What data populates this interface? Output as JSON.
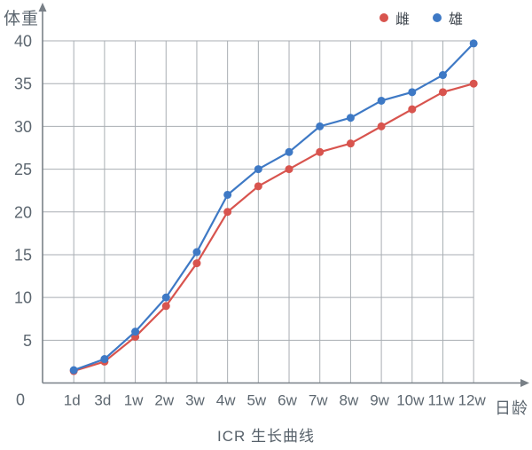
{
  "chart_data": {
    "type": "line",
    "title": "ICR 生长曲线",
    "y_axis_title": "体重",
    "x_axis_title": "日龄",
    "categories": [
      "1d",
      "3d",
      "1w",
      "2w",
      "3w",
      "4w",
      "5w",
      "6w",
      "7w",
      "8w",
      "9w",
      "10w",
      "11w",
      "12w"
    ],
    "y_ticks": [
      0,
      5,
      10,
      15,
      20,
      25,
      30,
      35,
      40
    ],
    "ylim": [
      0,
      40
    ],
    "grid": true,
    "legend_position": "top-right",
    "series": [
      {
        "name": "雌",
        "color": "#d8544e",
        "values": [
          1.4,
          2.5,
          5.4,
          9,
          14,
          20,
          23,
          25,
          27,
          28,
          30,
          32,
          34,
          35
        ]
      },
      {
        "name": "雄",
        "color": "#3e79c5",
        "values": [
          1.5,
          2.8,
          6,
          10,
          15.3,
          22,
          25,
          27,
          30,
          31,
          33,
          34,
          36,
          39.7
        ]
      }
    ]
  },
  "colors": {
    "grid": "#a9aeb3",
    "axis": "#798087",
    "tick_text": "#5d6770",
    "female": "#d8544e",
    "male": "#3e79c5"
  }
}
